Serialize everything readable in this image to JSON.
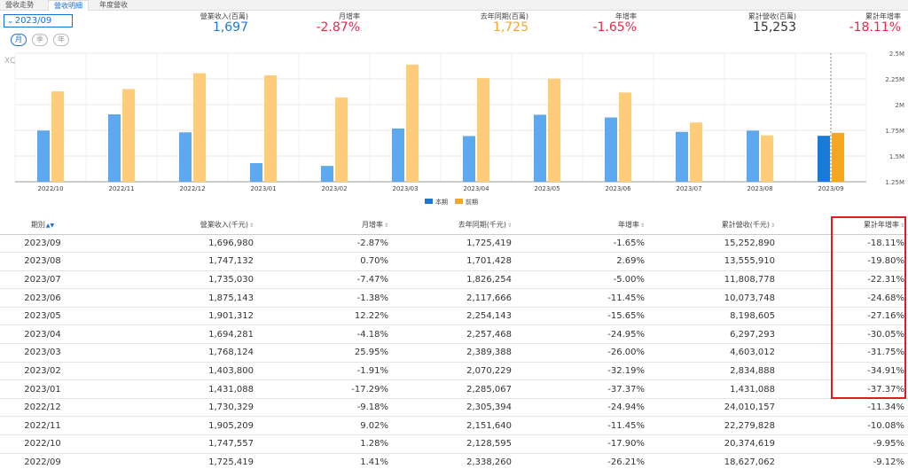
{
  "tabs": [
    "營收走勢",
    "營收明細",
    "年度營收"
  ],
  "active_tab": 1,
  "period": {
    "selected": "2023/09",
    "chevron": "⌄"
  },
  "period_types": [
    "月",
    "季",
    "年"
  ],
  "active_period_type": 0,
  "summary": [
    {
      "label": "營業收入(百萬)",
      "value": "1,697",
      "color": "#1a7ad8"
    },
    {
      "label": "月增率",
      "value": "-2.87%",
      "color": "#e8294a"
    },
    {
      "label": "去年同期(百萬)",
      "value": "1,725",
      "color": "#f5a623"
    },
    {
      "label": "年增率",
      "value": "-1.65%",
      "color": "#e8294a"
    },
    {
      "label": "累計營收(百萬)",
      "value": "15,253",
      "color": "#333333"
    },
    {
      "label": "累計年增率",
      "value": "-18.11%",
      "color": "#e8294a"
    }
  ],
  "chart_data": {
    "type": "bar",
    "watermark": "XQ",
    "categories": [
      "2022/10",
      "2022/11",
      "2022/12",
      "2023/01",
      "2023/02",
      "2023/03",
      "2023/04",
      "2023/05",
      "2023/06",
      "2023/07",
      "2023/08",
      "2023/09"
    ],
    "series": [
      {
        "name": "本期",
        "color": "#5ea9ee",
        "highlight_color": "#1a7ad8",
        "values": [
          1747557,
          1905209,
          1730329,
          1431088,
          1403800,
          1768124,
          1694281,
          1901312,
          1875143,
          1735030,
          1747132,
          1696980
        ]
      },
      {
        "name": "前期",
        "color": "#ffcc7a",
        "highlight_color": "#f5a623",
        "values": [
          2128595,
          2151640,
          2305394,
          2285067,
          2070229,
          2389388,
          2257468,
          2254143,
          2117666,
          1826254,
          1701428,
          1725419
        ]
      }
    ],
    "y_ticks": [
      1250000,
      1500000,
      1750000,
      2000000,
      2250000,
      2500000
    ],
    "y_tick_labels": [
      "1.25M",
      "1.5M",
      "1.75M",
      "2M",
      "2.25M",
      "2.5M"
    ],
    "ylim": [
      1250000,
      2500000
    ],
    "highlight_category": "2023/09",
    "legend": [
      "本期",
      "前期"
    ]
  },
  "table": {
    "headers": [
      "期別",
      "營業收入(千元)",
      "月增率",
      "去年同期(千元)",
      "年增率",
      "累計營收(千元)",
      "累計年增率"
    ],
    "rows": [
      [
        "2023/09",
        "1,696,980",
        "-2.87%",
        "1,725,419",
        "-1.65%",
        "15,252,890",
        "-18.11%"
      ],
      [
        "2023/08",
        "1,747,132",
        "0.70%",
        "1,701,428",
        "2.69%",
        "13,555,910",
        "-19.80%"
      ],
      [
        "2023/07",
        "1,735,030",
        "-7.47%",
        "1,826,254",
        "-5.00%",
        "11,808,778",
        "-22.31%"
      ],
      [
        "2023/06",
        "1,875,143",
        "-1.38%",
        "2,117,666",
        "-11.45%",
        "10,073,748",
        "-24.68%"
      ],
      [
        "2023/05",
        "1,901,312",
        "12.22%",
        "2,254,143",
        "-15.65%",
        "8,198,605",
        "-27.16%"
      ],
      [
        "2023/04",
        "1,694,281",
        "-4.18%",
        "2,257,468",
        "-24.95%",
        "6,297,293",
        "-30.05%"
      ],
      [
        "2023/03",
        "1,768,124",
        "25.95%",
        "2,389,388",
        "-26.00%",
        "4,603,012",
        "-31.75%"
      ],
      [
        "2023/02",
        "1,403,800",
        "-1.91%",
        "2,070,229",
        "-32.19%",
        "2,834,888",
        "-34.91%"
      ],
      [
        "2023/01",
        "1,431,088",
        "-17.29%",
        "2,285,067",
        "-37.37%",
        "1,431,088",
        "-37.37%"
      ],
      [
        "2022/12",
        "1,730,329",
        "-9.18%",
        "2,305,394",
        "-24.94%",
        "24,010,157",
        "-11.34%"
      ],
      [
        "2022/11",
        "1,905,209",
        "9.02%",
        "2,151,640",
        "-11.45%",
        "22,279,828",
        "-10.08%"
      ],
      [
        "2022/10",
        "1,747,557",
        "1.28%",
        "2,128,595",
        "-17.90%",
        "20,374,619",
        "-9.95%"
      ],
      [
        "2022/09",
        "1,725,419",
        "1.41%",
        "2,338,260",
        "-26.21%",
        "18,627,062",
        "-9.12%"
      ]
    ]
  },
  "sort_icons": {
    "active": "▲▼",
    "inactive": "⇕"
  }
}
